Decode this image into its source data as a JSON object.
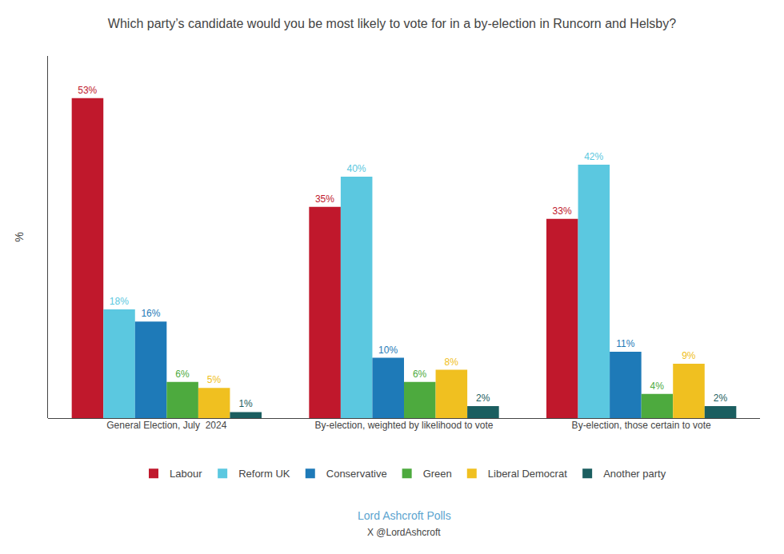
{
  "chart_data": {
    "type": "bar",
    "title": "Which party’s candidate would you be most likely to vote for in a by-election in Runcorn and Helsby?",
    "ylabel": "%",
    "categories": [
      "General Election, July  2024",
      "By-election, weighted by likelihood to vote",
      "By-election, those certain to vote"
    ],
    "series": [
      {
        "name": "Labour",
        "color": "#c0182c",
        "values": [
          53,
          35,
          33
        ],
        "value_labels": [
          "53%",
          "35%",
          "33%"
        ]
      },
      {
        "name": "Reform UK",
        "color": "#5bc8e0",
        "values": [
          18,
          40,
          42
        ],
        "value_labels": [
          "18%",
          "40%",
          "42%"
        ]
      },
      {
        "name": "Conservative",
        "color": "#1e7ab8",
        "values": [
          16,
          10,
          11
        ],
        "value_labels": [
          "16%",
          "10%",
          "11%"
        ]
      },
      {
        "name": "Green",
        "color": "#4daa3e",
        "values": [
          6,
          6,
          4
        ],
        "value_labels": [
          "6%",
          "6%",
          "4%"
        ]
      },
      {
        "name": "Liberal Democrat",
        "color": "#f0c020",
        "values": [
          5,
          8,
          9
        ],
        "value_labels": [
          "5%",
          "8%",
          "9%"
        ]
      },
      {
        "name": "Another party",
        "color": "#1b5e60",
        "values": [
          1,
          2,
          2
        ],
        "value_labels": [
          "1%",
          "2%",
          "2%"
        ]
      }
    ],
    "annotations": [
      {
        "text": "Lord Ashcroft Polls",
        "color": "#5ba4cf"
      },
      {
        "text": "X @LordAshcroft"
      }
    ],
    "ylim": [
      0,
      60
    ],
    "yticks": [],
    "data_labels": true,
    "tick_labels": "x",
    "legend": "bottom",
    "grid": false
  }
}
